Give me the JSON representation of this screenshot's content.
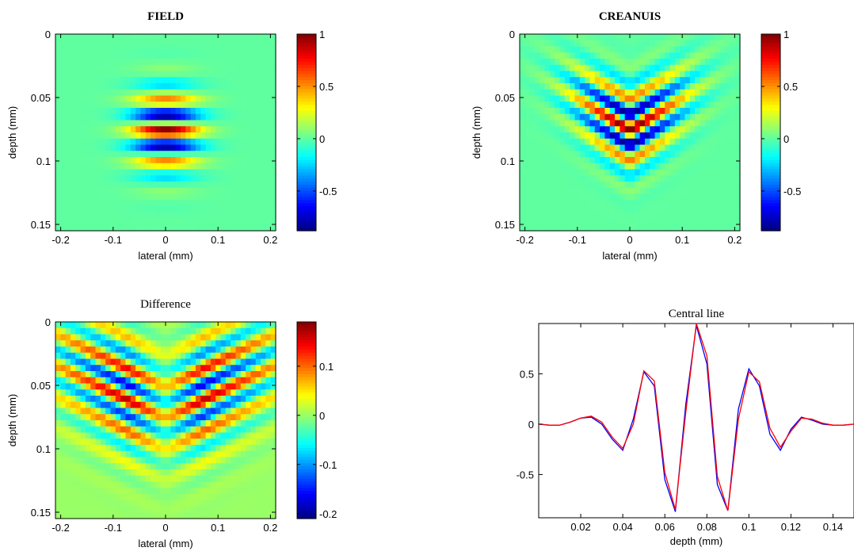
{
  "chart_data": [
    {
      "type": "heatmap",
      "title": "FIELD",
      "title_bold": true,
      "xlabel": "lateral (mm)",
      "ylabel": "depth (mm)",
      "xlim": [
        -0.21,
        0.21
      ],
      "ylim": [
        0,
        0.155
      ],
      "xticks": [
        -0.2,
        -0.1,
        0,
        0.1,
        0.2
      ],
      "xtick_labels": [
        "-0.2",
        "-0.1",
        "0",
        "0.1",
        "0.2"
      ],
      "yticks": [
        0,
        0.05,
        0.1,
        0.15
      ],
      "ytick_labels": [
        "0",
        "0.05",
        "0.1",
        "0.15"
      ],
      "y_reversed": true,
      "colormap": "jet",
      "clim": [
        -0.88,
        1
      ],
      "colorbar_ticks": [
        -0.5,
        0,
        0.5,
        1
      ],
      "colorbar_labels": [
        "-0.5",
        "0",
        "0.5",
        "1"
      ],
      "field": {
        "center_depth": 0.076,
        "wavelength": 0.025,
        "depth_sigma": 0.022,
        "lateral_sigma": 0.045,
        "curvature": 0.0
      }
    },
    {
      "type": "heatmap",
      "title": "CREANUIS",
      "title_bold": true,
      "xlabel": "lateral (mm)",
      "ylabel": "depth (mm)",
      "xlim": [
        -0.21,
        0.21
      ],
      "ylim": [
        0,
        0.155
      ],
      "xticks": [
        -0.2,
        -0.1,
        0,
        0.1,
        0.2
      ],
      "xtick_labels": [
        "-0.2",
        "-0.1",
        "0",
        "0.1",
        "0.2"
      ],
      "yticks": [
        0,
        0.05,
        0.1,
        0.15
      ],
      "ytick_labels": [
        "0",
        "0.05",
        "0.1",
        "0.15"
      ],
      "y_reversed": true,
      "colormap": "jet",
      "clim": [
        -0.88,
        1
      ],
      "colorbar_ticks": [
        -0.5,
        0,
        0.5,
        1
      ],
      "colorbar_labels": [
        "-0.5",
        "0",
        "0.5",
        "1"
      ],
      "field": {
        "center_depth": 0.076,
        "wavelength": 0.025,
        "depth_sigma": 0.022,
        "lateral_sigma": 0.075,
        "curvature": 0.25
      }
    },
    {
      "type": "heatmap",
      "title": "Difference",
      "title_bold": false,
      "xlabel": "lateral (mm)",
      "ylabel": "depth (mm)",
      "xlim": [
        -0.21,
        0.21
      ],
      "ylim": [
        0,
        0.155
      ],
      "xticks": [
        -0.2,
        -0.1,
        0,
        0.1,
        0.2
      ],
      "xtick_labels": [
        "-0.2",
        "-0.1",
        "0",
        "0.1",
        "0.2"
      ],
      "yticks": [
        0,
        0.05,
        0.1,
        0.15
      ],
      "ytick_labels": [
        "0",
        "0.05",
        "0.1",
        "0.15"
      ],
      "y_reversed": true,
      "colormap": "jet",
      "clim": [
        -0.21,
        0.19
      ],
      "colorbar_ticks": [
        -0.2,
        -0.1,
        0,
        0.1
      ],
      "colorbar_labels": [
        "-0.2",
        "-0.1",
        "0",
        "0.1"
      ],
      "field": {
        "center_depth": 0.07,
        "wavelength": 0.025,
        "depth_sigma": 0.032,
        "lateral_sigma": 0.16,
        "curvature": 0.2
      }
    },
    {
      "type": "line",
      "title": "Central line",
      "xlabel": "depth (mm)",
      "ylabel": "",
      "xlim": [
        0,
        0.15
      ],
      "ylim": [
        -0.93,
        1
      ],
      "xticks": [
        0.02,
        0.04,
        0.06,
        0.08,
        0.1,
        0.12,
        0.14
      ],
      "xtick_labels": [
        "0.02",
        "0.04",
        "0.06",
        "0.08",
        "0.1",
        "0.12",
        "0.14"
      ],
      "yticks": [
        0.5,
        0,
        -0.5
      ],
      "ytick_labels": [
        "0.5",
        "0",
        "-0.5"
      ],
      "series": [
        {
          "color": "#0000ff",
          "x": [
            0,
            0.005,
            0.01,
            0.015,
            0.02,
            0.025,
            0.03,
            0.035,
            0.04,
            0.045,
            0.05,
            0.055,
            0.06,
            0.065,
            0.07,
            0.075,
            0.08,
            0.085,
            0.09,
            0.095,
            0.1,
            0.105,
            0.11,
            0.115,
            0.12,
            0.125,
            0.13,
            0.135,
            0.14,
            0.145,
            0.15
          ],
          "y": [
            0.0,
            -0.01,
            -0.01,
            0.02,
            0.06,
            0.07,
            0.0,
            -0.15,
            -0.26,
            0.05,
            0.52,
            0.38,
            -0.55,
            -0.87,
            0.2,
            0.98,
            0.6,
            -0.6,
            -0.86,
            0.15,
            0.55,
            0.38,
            -0.1,
            -0.26,
            -0.05,
            0.07,
            0.04,
            0.0,
            -0.01,
            -0.01,
            0.0
          ]
        },
        {
          "color": "#ff0000",
          "x": [
            0,
            0.005,
            0.01,
            0.015,
            0.02,
            0.025,
            0.03,
            0.035,
            0.04,
            0.045,
            0.05,
            0.055,
            0.06,
            0.065,
            0.07,
            0.075,
            0.08,
            0.085,
            0.09,
            0.095,
            0.1,
            0.105,
            0.11,
            0.115,
            0.12,
            0.125,
            0.13,
            0.135,
            0.14,
            0.145,
            0.15
          ],
          "y": [
            0.0,
            -0.01,
            -0.01,
            0.02,
            0.06,
            0.08,
            0.02,
            -0.13,
            -0.24,
            0.0,
            0.53,
            0.43,
            -0.48,
            -0.85,
            0.12,
            1.0,
            0.68,
            -0.52,
            -0.86,
            0.05,
            0.52,
            0.42,
            -0.04,
            -0.23,
            -0.07,
            0.06,
            0.05,
            0.01,
            -0.01,
            -0.01,
            0.0
          ]
        }
      ]
    }
  ]
}
